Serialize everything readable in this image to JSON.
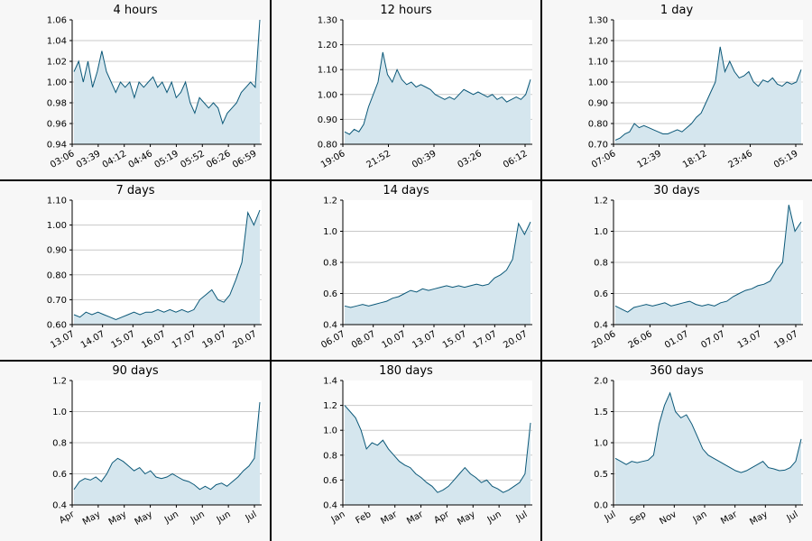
{
  "chart_data": [
    {
      "type": "area",
      "title": "4 hours",
      "ylim": [
        0.94,
        1.06
      ],
      "yticks": [
        "0.94",
        "0.96",
        "0.98",
        "1.00",
        "1.02",
        "1.04",
        "1.06"
      ],
      "xticks": [
        "03:06",
        "03:39",
        "04:12",
        "04:46",
        "05:19",
        "05:52",
        "06:26",
        "06:59"
      ],
      "series": [
        {
          "values": [
            1.01,
            1.02,
            1.0,
            1.02,
            0.995,
            1.01,
            1.03,
            1.01,
            1.0,
            0.99,
            1.0,
            0.995,
            1.0,
            0.985,
            1.0,
            0.995,
            1.0,
            1.005,
            0.995,
            1.0,
            0.99,
            1.0,
            0.985,
            0.99,
            1.0,
            0.98,
            0.97,
            0.985,
            0.98,
            0.975,
            0.98,
            0.975,
            0.96,
            0.97,
            0.975,
            0.98,
            0.99,
            0.995,
            1.0,
            0.995,
            1.06
          ]
        }
      ]
    },
    {
      "type": "area",
      "title": "12 hours",
      "ylim": [
        0.8,
        1.3
      ],
      "yticks": [
        "0.80",
        "0.90",
        "1.00",
        "1.10",
        "1.20",
        "1.30"
      ],
      "xticks": [
        "19:06",
        "21:52",
        "00:39",
        "03:26",
        "06:12"
      ],
      "series": [
        {
          "values": [
            0.85,
            0.84,
            0.86,
            0.85,
            0.88,
            0.95,
            1.0,
            1.05,
            1.17,
            1.08,
            1.05,
            1.1,
            1.06,
            1.04,
            1.05,
            1.03,
            1.04,
            1.03,
            1.02,
            1.0,
            0.99,
            0.98,
            0.99,
            0.98,
            1.0,
            1.02,
            1.01,
            1.0,
            1.01,
            1.0,
            0.99,
            1.0,
            0.98,
            0.99,
            0.97,
            0.98,
            0.99,
            0.98,
            1.0,
            1.06
          ]
        }
      ]
    },
    {
      "type": "area",
      "title": "1 day",
      "ylim": [
        0.7,
        1.3
      ],
      "yticks": [
        "0.70",
        "0.80",
        "0.90",
        "1.00",
        "1.10",
        "1.20",
        "1.30"
      ],
      "xticks": [
        "07:06",
        "12:39",
        "18:12",
        "23:46",
        "05:19"
      ],
      "series": [
        {
          "values": [
            0.72,
            0.73,
            0.75,
            0.76,
            0.8,
            0.78,
            0.79,
            0.78,
            0.77,
            0.76,
            0.75,
            0.75,
            0.76,
            0.77,
            0.76,
            0.78,
            0.8,
            0.83,
            0.85,
            0.9,
            0.95,
            1.0,
            1.17,
            1.05,
            1.1,
            1.05,
            1.02,
            1.03,
            1.05,
            1.0,
            0.98,
            1.01,
            1.0,
            1.02,
            0.99,
            0.98,
            1.0,
            0.99,
            1.0,
            1.06
          ]
        }
      ]
    },
    {
      "type": "area",
      "title": "7 days",
      "ylim": [
        0.6,
        1.1
      ],
      "yticks": [
        "0.60",
        "0.70",
        "0.80",
        "0.90",
        "1.00",
        "1.10"
      ],
      "xticks": [
        "13.07",
        "14.07",
        "15.07",
        "16.07",
        "17.07",
        "19.07",
        "20.07"
      ],
      "series": [
        {
          "values": [
            0.64,
            0.63,
            0.65,
            0.64,
            0.65,
            0.64,
            0.63,
            0.62,
            0.63,
            0.64,
            0.65,
            0.64,
            0.65,
            0.65,
            0.66,
            0.65,
            0.66,
            0.65,
            0.66,
            0.65,
            0.66,
            0.7,
            0.72,
            0.74,
            0.7,
            0.69,
            0.72,
            0.78,
            0.85,
            1.05,
            1.0,
            1.06
          ]
        }
      ]
    },
    {
      "type": "area",
      "title": "14 days",
      "ylim": [
        0.4,
        1.2
      ],
      "yticks": [
        "0.4",
        "0.6",
        "0.8",
        "1.0",
        "1.2"
      ],
      "xticks": [
        "06.07",
        "08.07",
        "10.07",
        "13.07",
        "15.07",
        "17.07",
        "20.07"
      ],
      "series": [
        {
          "values": [
            0.52,
            0.51,
            0.52,
            0.53,
            0.52,
            0.53,
            0.54,
            0.55,
            0.57,
            0.58,
            0.6,
            0.62,
            0.61,
            0.63,
            0.62,
            0.63,
            0.64,
            0.65,
            0.64,
            0.65,
            0.64,
            0.65,
            0.66,
            0.65,
            0.66,
            0.7,
            0.72,
            0.75,
            0.82,
            1.05,
            0.98,
            1.06
          ]
        }
      ]
    },
    {
      "type": "area",
      "title": "30 days",
      "ylim": [
        0.4,
        1.2
      ],
      "yticks": [
        "0.4",
        "0.6",
        "0.8",
        "1.0",
        "1.2"
      ],
      "xticks": [
        "20.06",
        "26.06",
        "01.07",
        "07.07",
        "13.07",
        "19.07"
      ],
      "series": [
        {
          "values": [
            0.52,
            0.5,
            0.48,
            0.51,
            0.52,
            0.53,
            0.52,
            0.53,
            0.54,
            0.52,
            0.53,
            0.54,
            0.55,
            0.53,
            0.52,
            0.53,
            0.52,
            0.54,
            0.55,
            0.58,
            0.6,
            0.62,
            0.63,
            0.65,
            0.66,
            0.68,
            0.75,
            0.8,
            1.17,
            1.0,
            1.06
          ]
        }
      ]
    },
    {
      "type": "area",
      "title": "90 days",
      "ylim": [
        0.4,
        1.2
      ],
      "yticks": [
        "0.4",
        "0.6",
        "0.8",
        "1.0",
        "1.2"
      ],
      "xticks": [
        "Apr",
        "May",
        "May",
        "May",
        "Jun",
        "Jun",
        "Jun",
        "Jul"
      ],
      "series": [
        {
          "values": [
            0.5,
            0.55,
            0.57,
            0.56,
            0.58,
            0.55,
            0.6,
            0.67,
            0.7,
            0.68,
            0.65,
            0.62,
            0.64,
            0.6,
            0.62,
            0.58,
            0.57,
            0.58,
            0.6,
            0.58,
            0.56,
            0.55,
            0.53,
            0.5,
            0.52,
            0.5,
            0.53,
            0.54,
            0.52,
            0.55,
            0.58,
            0.62,
            0.65,
            0.7,
            1.06
          ]
        }
      ]
    },
    {
      "type": "area",
      "title": "180 days",
      "ylim": [
        0.4,
        1.4
      ],
      "yticks": [
        "0.4",
        "0.6",
        "0.8",
        "1.0",
        "1.2",
        "1.4"
      ],
      "xticks": [
        "Jan",
        "Feb",
        "Mar",
        "Mar",
        "Apr",
        "May",
        "Jun",
        "Jul"
      ],
      "series": [
        {
          "values": [
            1.2,
            1.15,
            1.1,
            1.0,
            0.85,
            0.9,
            0.88,
            0.92,
            0.85,
            0.8,
            0.75,
            0.72,
            0.7,
            0.65,
            0.62,
            0.58,
            0.55,
            0.5,
            0.52,
            0.55,
            0.6,
            0.65,
            0.7,
            0.65,
            0.62,
            0.58,
            0.6,
            0.55,
            0.53,
            0.5,
            0.52,
            0.55,
            0.58,
            0.65,
            1.06
          ]
        }
      ]
    },
    {
      "type": "area",
      "title": "360 days",
      "ylim": [
        0.0,
        2.0
      ],
      "yticks": [
        "0.0",
        "0.5",
        "1.0",
        "1.5",
        "2.0"
      ],
      "xticks": [
        "Jul",
        "Sep",
        "Nov",
        "Jan",
        "Mar",
        "May",
        "Jul"
      ],
      "series": [
        {
          "values": [
            0.75,
            0.7,
            0.65,
            0.7,
            0.68,
            0.7,
            0.72,
            0.8,
            1.3,
            1.6,
            1.8,
            1.5,
            1.4,
            1.45,
            1.3,
            1.1,
            0.9,
            0.8,
            0.75,
            0.7,
            0.65,
            0.6,
            0.55,
            0.52,
            0.55,
            0.6,
            0.65,
            0.7,
            0.6,
            0.58,
            0.55,
            0.56,
            0.6,
            0.7,
            1.06
          ]
        }
      ]
    }
  ]
}
